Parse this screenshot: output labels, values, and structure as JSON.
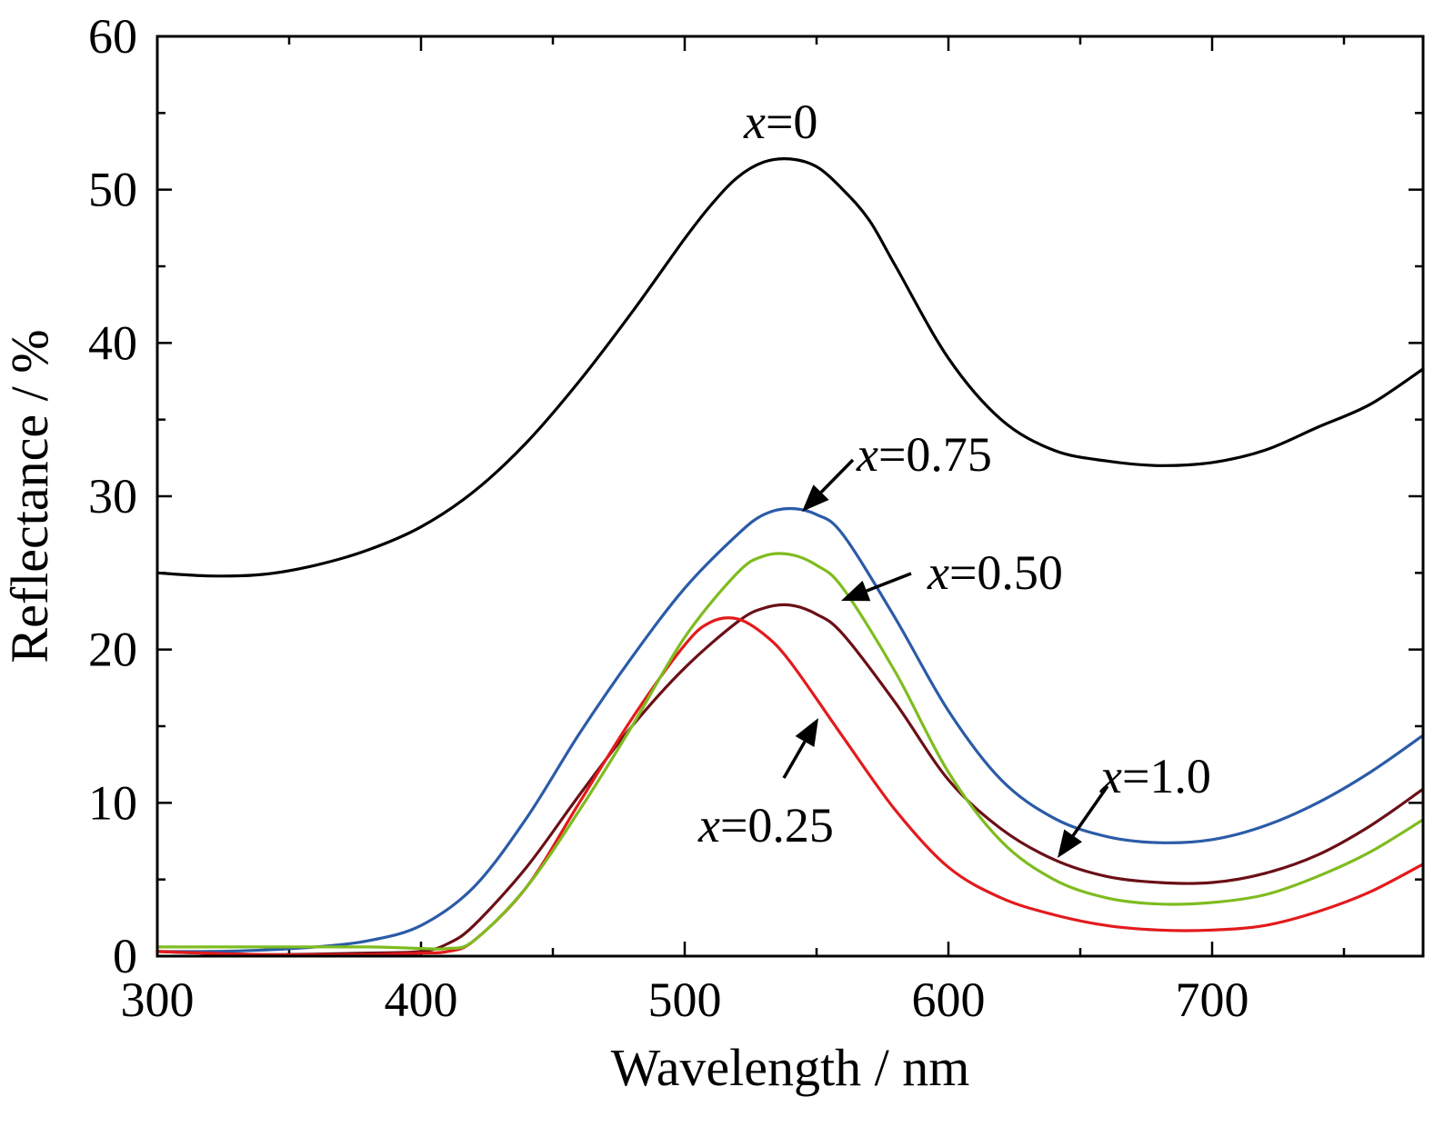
{
  "chart_data": {
    "type": "line",
    "title": "",
    "xlabel": "Wavelength / nm",
    "ylabel": "Reflectance / %",
    "xlim": [
      300,
      780
    ],
    "ylim": [
      0,
      60
    ],
    "xticks": [
      300,
      400,
      500,
      600,
      700
    ],
    "xticks_minor": [
      350,
      450,
      550,
      650,
      750
    ],
    "yticks": [
      0,
      10,
      20,
      30,
      40,
      50,
      60
    ],
    "yticks_minor": [
      5,
      15,
      25,
      35,
      45,
      55
    ],
    "grid": false,
    "legend": "none",
    "series": [
      {
        "name": "x=0",
        "color": "#000000",
        "x": [
          300,
          320,
          340,
          360,
          380,
          400,
          420,
          440,
          460,
          480,
          500,
          510,
          520,
          530,
          540,
          550,
          560,
          570,
          580,
          600,
          620,
          640,
          660,
          680,
          700,
          720,
          740,
          760,
          780
        ],
        "y": [
          25.0,
          24.8,
          24.9,
          25.5,
          26.5,
          28.0,
          30.3,
          33.5,
          37.5,
          42.0,
          46.8,
          49.0,
          50.8,
          51.8,
          52.0,
          51.5,
          50.0,
          48.0,
          45.0,
          39.0,
          35.0,
          33.0,
          32.3,
          32.0,
          32.2,
          33.0,
          34.5,
          36.0,
          38.3
        ]
      },
      {
        "name": "x=0.25",
        "color": "#e31a1c",
        "x": [
          300,
          340,
          380,
          400,
          410,
          420,
          440,
          460,
          480,
          500,
          510,
          520,
          530,
          540,
          560,
          580,
          600,
          620,
          640,
          660,
          680,
          700,
          720,
          740,
          760,
          780
        ],
        "y": [
          0.3,
          0.1,
          0.1,
          0.2,
          0.3,
          1.0,
          4.5,
          10.0,
          15.5,
          20.3,
          21.8,
          22.0,
          21.0,
          19.2,
          14.3,
          9.5,
          5.8,
          3.8,
          2.7,
          2.0,
          1.7,
          1.7,
          2.0,
          2.9,
          4.2,
          6.0
        ]
      },
      {
        "name": "x=0.50",
        "color": "#7fbc20",
        "x": [
          300,
          340,
          380,
          400,
          410,
          420,
          440,
          460,
          480,
          500,
          520,
          530,
          540,
          550,
          560,
          580,
          600,
          620,
          640,
          660,
          680,
          700,
          720,
          740,
          760,
          780
        ],
        "y": [
          0.6,
          0.6,
          0.6,
          0.5,
          0.5,
          1.0,
          4.5,
          9.5,
          15.0,
          20.8,
          25.0,
          26.1,
          26.2,
          25.5,
          24.0,
          18.5,
          12.0,
          7.5,
          5.0,
          3.8,
          3.4,
          3.5,
          4.0,
          5.2,
          6.8,
          8.9
        ]
      },
      {
        "name": "x=0.75",
        "color": "#2b5ba8",
        "x": [
          300,
          320,
          340,
          360,
          380,
          400,
          420,
          440,
          460,
          480,
          500,
          520,
          530,
          540,
          550,
          560,
          580,
          600,
          620,
          640,
          660,
          680,
          700,
          720,
          740,
          760,
          780
        ],
        "y": [
          0.3,
          0.3,
          0.4,
          0.6,
          1.0,
          2.0,
          4.5,
          9.0,
          14.5,
          19.5,
          24.0,
          27.5,
          28.8,
          29.2,
          28.8,
          27.5,
          22.0,
          16.0,
          11.5,
          9.0,
          7.8,
          7.4,
          7.6,
          8.5,
          10.0,
          12.0,
          14.4
        ]
      },
      {
        "name": "x=1.0",
        "color": "#6b0f16",
        "x": [
          300,
          340,
          380,
          400,
          410,
          420,
          440,
          460,
          480,
          500,
          520,
          530,
          540,
          550,
          560,
          580,
          600,
          620,
          640,
          660,
          680,
          700,
          720,
          740,
          760,
          780
        ],
        "y": [
          0.3,
          0.1,
          0.2,
          0.3,
          0.8,
          2.0,
          5.8,
          10.5,
          15.0,
          18.8,
          21.8,
          22.7,
          22.9,
          22.3,
          21.0,
          16.5,
          11.5,
          8.3,
          6.3,
          5.2,
          4.8,
          4.8,
          5.4,
          6.6,
          8.5,
          10.9
        ]
      }
    ],
    "annotations": [
      {
        "var": "x",
        "text": "=0",
        "series": "x=0"
      },
      {
        "var": "x",
        "text": "=0.75",
        "series": "x=0.75"
      },
      {
        "var": "x",
        "text": "=0.50",
        "series": "x=0.50"
      },
      {
        "var": "x",
        "text": "=1.0",
        "series": "x=1.0"
      },
      {
        "var": "x",
        "text": "=0.25",
        "series": "x=0.25"
      }
    ]
  }
}
